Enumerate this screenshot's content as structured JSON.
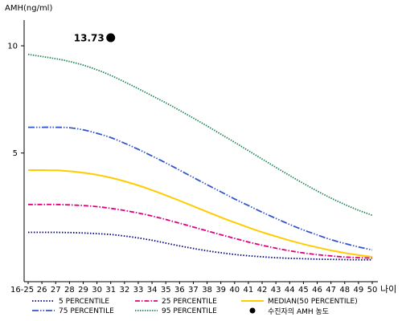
{
  "chart_data": {
    "type": "line",
    "ylabel": "AMH(ng/ml)",
    "xlabel": "나이",
    "categories": [
      "16-25",
      "26",
      "27",
      "28",
      "29",
      "30",
      "31",
      "32",
      "33",
      "34",
      "35",
      "36",
      "37",
      "38",
      "39",
      "40",
      "41",
      "42",
      "43",
      "44",
      "45",
      "46",
      "47",
      "48",
      "49",
      "50"
    ],
    "y_ticks": [
      5,
      10
    ],
    "ylim": [
      -1,
      11.2
    ],
    "grid": false,
    "legend_position": "bottom",
    "series": [
      {
        "name": "5 PERCENTILE",
        "color": "#000080",
        "dash": "1.5,2",
        "values": [
          1.3,
          1.3,
          1.3,
          1.29,
          1.27,
          1.24,
          1.2,
          1.13,
          1.04,
          0.93,
          0.8,
          0.67,
          0.55,
          0.44,
          0.35,
          0.27,
          0.21,
          0.16,
          0.12,
          0.09,
          0.07,
          0.05,
          0.04,
          0.03,
          0.02,
          0.02
        ]
      },
      {
        "name": "25 PERCENTILE",
        "color": "#e0007f",
        "dash": "6,2,1.5,2",
        "values": [
          2.6,
          2.6,
          2.6,
          2.58,
          2.55,
          2.5,
          2.42,
          2.32,
          2.2,
          2.06,
          1.9,
          1.73,
          1.55,
          1.37,
          1.19,
          1.02,
          0.85,
          0.7,
          0.56,
          0.44,
          0.34,
          0.26,
          0.2,
          0.15,
          0.12,
          0.1
        ]
      },
      {
        "name": "MEDIAN(50 PERCENTILE)",
        "color": "#ffcc00",
        "dash": "",
        "values": [
          4.2,
          4.2,
          4.19,
          4.15,
          4.08,
          3.98,
          3.85,
          3.68,
          3.49,
          3.27,
          3.03,
          2.78,
          2.52,
          2.26,
          2.0,
          1.76,
          1.53,
          1.31,
          1.11,
          0.92,
          0.75,
          0.6,
          0.46,
          0.34,
          0.24,
          0.16
        ]
      },
      {
        "name": "75 PERCENTILE",
        "color": "#3355cc",
        "dash": "8,2,1.5,2,1.5,2",
        "values": [
          6.2,
          6.2,
          6.2,
          6.18,
          6.08,
          5.92,
          5.72,
          5.46,
          5.17,
          4.86,
          4.54,
          4.2,
          3.86,
          3.52,
          3.19,
          2.86,
          2.55,
          2.24,
          1.95,
          1.67,
          1.41,
          1.18,
          0.96,
          0.78,
          0.62,
          0.48
        ]
      },
      {
        "name": "95 PERCENTILE",
        "color": "#228855",
        "dash": "1.5,1.5",
        "values": [
          9.6,
          9.5,
          9.4,
          9.27,
          9.1,
          8.88,
          8.62,
          8.32,
          8.0,
          7.67,
          7.34,
          6.99,
          6.63,
          6.26,
          5.88,
          5.5,
          5.11,
          4.72,
          4.33,
          3.95,
          3.58,
          3.23,
          2.9,
          2.6,
          2.33,
          2.1
        ]
      }
    ],
    "point": {
      "name": "수진자의 AMH 농도",
      "x": "31",
      "y": 13.73,
      "label": "13.73"
    }
  }
}
